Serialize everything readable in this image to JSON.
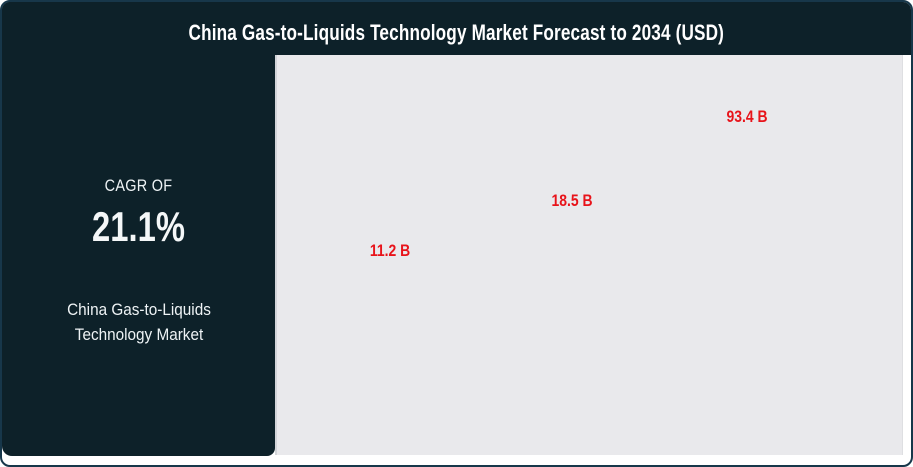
{
  "header": {
    "title": "China Gas-to-Liquids Technology Market Forecast to 2034 (USD)"
  },
  "sidebar": {
    "cagr_label": "CAGR OF",
    "cagr_value": "21.1%",
    "market_name": "China Gas-to-Liquids Technology Market"
  },
  "chart_data": {
    "type": "bar",
    "title": "China Gas-to-Liquids Technology Market Forecast to 2034 (USD)",
    "unit": "USD billions",
    "values": [
      11.2,
      18.5,
      93.4
    ],
    "labels": [
      "11.2 B",
      "18.5 B",
      "93.4 B"
    ],
    "categories": [],
    "bars_visible": false,
    "axes_visible": false,
    "grid": false,
    "legend": "none",
    "label_color": "#e8131a",
    "plot_background": "#e9e9ec"
  },
  "colors": {
    "panel_dark": "#0d2129",
    "card_border": "#17374a",
    "accent_red": "#e8131a",
    "plot_gray": "#e9e9ec",
    "text_white": "#ffffff"
  }
}
